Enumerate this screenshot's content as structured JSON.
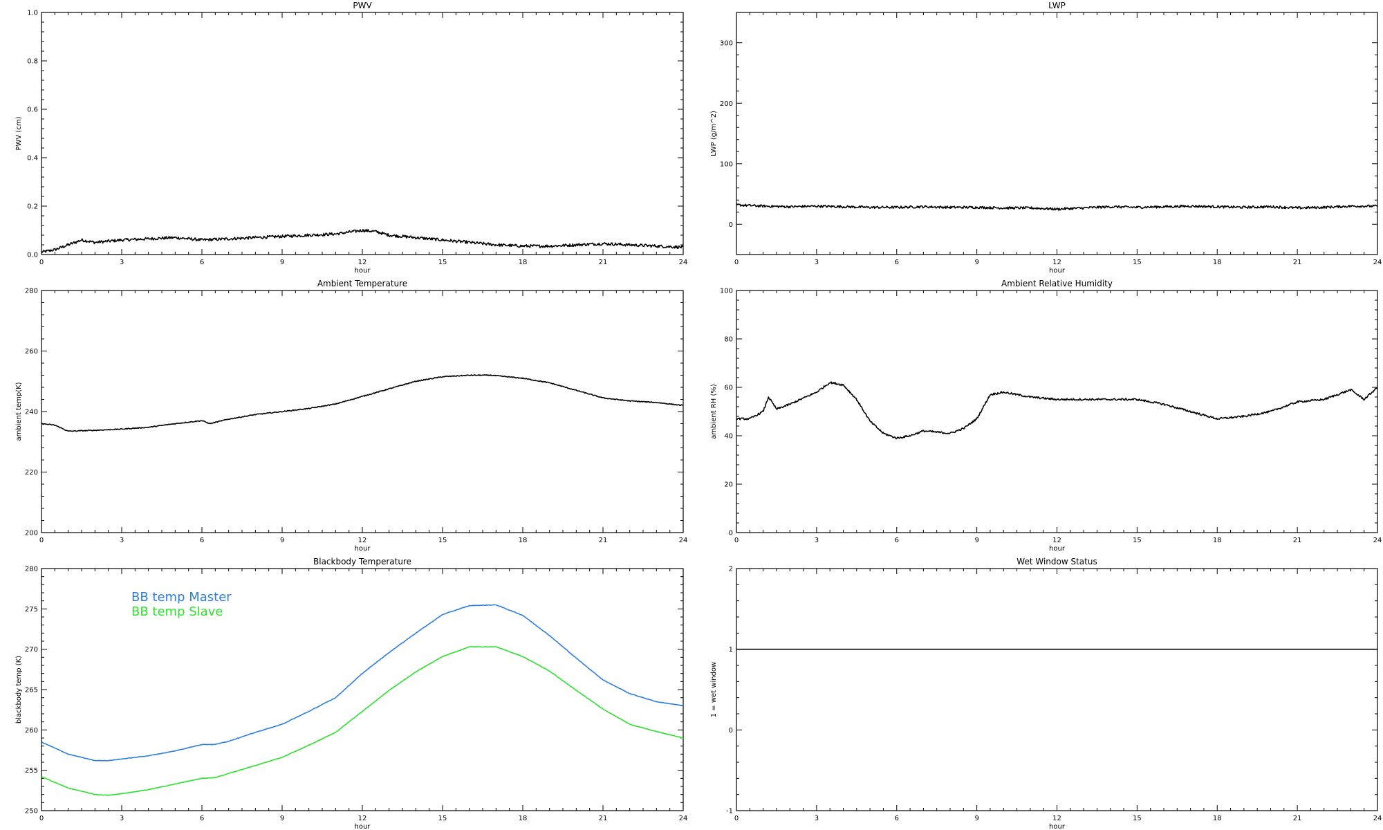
{
  "colors": {
    "black": "#000000",
    "master": "#2f7de0",
    "slave": "#2fe02f"
  },
  "chart_data": [
    {
      "id": "pwv",
      "type": "line",
      "title": "PWV",
      "xlabel": "hour",
      "ylabel": "PWV (cm)",
      "xlim": [
        0,
        24
      ],
      "ylim": [
        0.0,
        1.0
      ],
      "xticks": [
        0,
        3,
        6,
        9,
        12,
        15,
        18,
        21,
        24
      ],
      "yticks": [
        "0.0",
        "0.2",
        "0.4",
        "0.6",
        "0.8",
        "1.0"
      ],
      "noise": 0.006,
      "series": [
        {
          "color": "#000000",
          "x": [
            0,
            0.5,
            1,
            1.5,
            2,
            3,
            4,
            5,
            6,
            7,
            8,
            9,
            10,
            11,
            12,
            12.5,
            13,
            14,
            15,
            16,
            17,
            18,
            19,
            20,
            21,
            22,
            23,
            24
          ],
          "y": [
            0.01,
            0.02,
            0.04,
            0.06,
            0.05,
            0.06,
            0.065,
            0.07,
            0.06,
            0.065,
            0.07,
            0.075,
            0.08,
            0.085,
            0.1,
            0.095,
            0.08,
            0.07,
            0.06,
            0.05,
            0.04,
            0.035,
            0.035,
            0.04,
            0.045,
            0.04,
            0.035,
            0.03
          ]
        }
      ]
    },
    {
      "id": "lwp",
      "type": "line",
      "title": "LWP",
      "xlabel": "hour",
      "ylabel": "LWP (g/m^2)",
      "xlim": [
        0,
        24
      ],
      "ylim": [
        -50,
        350
      ],
      "xticks": [
        0,
        3,
        6,
        9,
        12,
        15,
        18,
        21,
        24
      ],
      "yticks": [
        "0",
        "100",
        "200",
        "300"
      ],
      "noise": 2,
      "series": [
        {
          "color": "#000000",
          "x": [
            0,
            1,
            2,
            3,
            4,
            5,
            6,
            7,
            8,
            9,
            10,
            11,
            12,
            13,
            14,
            15,
            16,
            17,
            18,
            19,
            20,
            21,
            22,
            23,
            24
          ],
          "y": [
            32,
            30,
            29,
            30,
            29,
            28,
            28,
            29,
            28,
            28,
            27,
            27,
            25,
            27,
            29,
            28,
            29,
            30,
            29,
            28,
            29,
            27,
            28,
            30,
            30
          ]
        }
      ]
    },
    {
      "id": "ambient-temp",
      "type": "line",
      "title": "Ambient Temperature",
      "xlabel": "hour",
      "ylabel": "ambient temp(K)",
      "xlim": [
        0,
        24
      ],
      "ylim": [
        200,
        280
      ],
      "xticks": [
        0,
        3,
        6,
        9,
        12,
        15,
        18,
        21,
        24
      ],
      "yticks": [
        "200",
        "220",
        "240",
        "260",
        "280"
      ],
      "noise": 0.15,
      "series": [
        {
          "color": "#000000",
          "x": [
            0,
            0.5,
            1,
            2,
            3,
            4,
            5,
            6,
            6.3,
            7,
            8,
            9,
            10,
            11,
            12,
            13,
            14,
            15,
            16,
            16.8,
            18,
            19,
            20,
            21,
            22,
            23,
            24
          ],
          "y": [
            236,
            235.5,
            233.5,
            233.8,
            234.2,
            234.8,
            236,
            237,
            236,
            237.5,
            239,
            240,
            241,
            242.5,
            245,
            247.5,
            250,
            251.5,
            252,
            252,
            251,
            249.5,
            247,
            244.5,
            243.5,
            243,
            242
          ]
        }
      ]
    },
    {
      "id": "ambient-rh",
      "type": "line",
      "title": "Ambient Relative Humidity",
      "xlabel": "hour",
      "ylabel": "ambient RH (%)",
      "xlim": [
        0,
        24
      ],
      "ylim": [
        0,
        100
      ],
      "xticks": [
        0,
        3,
        6,
        9,
        12,
        15,
        18,
        21,
        24
      ],
      "yticks": [
        "0",
        "20",
        "40",
        "60",
        "80",
        "100"
      ],
      "noise": 0.4,
      "series": [
        {
          "color": "#000000",
          "x": [
            0,
            0.5,
            1,
            1.2,
            1.5,
            2,
            3,
            3.5,
            4,
            4.5,
            5,
            5.5,
            6,
            6.5,
            7,
            8,
            8.5,
            9,
            9.5,
            10,
            11,
            12,
            13,
            14,
            15,
            16,
            17,
            18,
            19,
            20,
            21,
            22,
            23,
            23.5,
            24
          ],
          "y": [
            47,
            47,
            50,
            56,
            51,
            53,
            58,
            62,
            61,
            55,
            46,
            41,
            39,
            40,
            42,
            41,
            43,
            47,
            57,
            58,
            56,
            55,
            55,
            55,
            55,
            53,
            50,
            47,
            48,
            50,
            54,
            55,
            59,
            55,
            60
          ]
        }
      ]
    },
    {
      "id": "blackbody-temp",
      "type": "line",
      "title": "Blackbody Temperature",
      "xlabel": "hour",
      "ylabel": "blackbody temp (K)",
      "xlim": [
        0,
        24
      ],
      "ylim": [
        250,
        280
      ],
      "xticks": [
        0,
        3,
        6,
        9,
        12,
        15,
        18,
        21,
        24
      ],
      "yticks": [
        "250",
        "255",
        "260",
        "265",
        "270",
        "275",
        "280"
      ],
      "noise": 0.03,
      "legend": [
        "BB temp Master",
        "BB temp Slave"
      ],
      "series": [
        {
          "name": "BB temp Master",
          "color": "#2f7de0",
          "x": [
            0,
            1,
            2,
            2.5,
            3,
            4,
            5,
            6,
            6.5,
            7,
            8,
            9,
            10,
            11,
            12,
            13,
            14,
            15,
            16,
            17,
            18,
            19,
            20,
            21,
            22,
            23,
            24
          ],
          "y": [
            258.5,
            257,
            256.2,
            256.2,
            256.4,
            256.8,
            257.4,
            258.2,
            258.2,
            258.6,
            259.7,
            260.7,
            262.3,
            264,
            267,
            269.6,
            272,
            274.3,
            275.4,
            275.5,
            274.2,
            271.7,
            268.9,
            266.2,
            264.5,
            263.5,
            263
          ]
        },
        {
          "name": "BB temp Slave",
          "color": "#2fe02f",
          "x": [
            0,
            1,
            2,
            2.5,
            3,
            4,
            5,
            6,
            6.5,
            7,
            8,
            9,
            10,
            11,
            12,
            13,
            14,
            15,
            16,
            17,
            18,
            19,
            20,
            21,
            22,
            23,
            24
          ],
          "y": [
            254.2,
            252.8,
            252,
            251.9,
            252.1,
            252.6,
            253.3,
            254,
            254.1,
            254.6,
            255.6,
            256.6,
            258.1,
            259.7,
            262.3,
            264.9,
            267.2,
            269.1,
            270.3,
            270.3,
            269.1,
            267.3,
            264.9,
            262.6,
            260.7,
            259.8,
            259
          ]
        }
      ]
    },
    {
      "id": "wet-window",
      "type": "line",
      "title": "Wet Window Status",
      "xlabel": "hour",
      "ylabel": "1 = wet window",
      "xlim": [
        0,
        24
      ],
      "ylim": [
        -1,
        2
      ],
      "xticks": [
        0,
        3,
        6,
        9,
        12,
        15,
        18,
        21,
        24
      ],
      "yticks": [
        "-1",
        "0",
        "1",
        "2"
      ],
      "noise": 0,
      "series": [
        {
          "color": "#000000",
          "x": [
            0,
            24
          ],
          "y": [
            1,
            1
          ]
        }
      ]
    }
  ]
}
